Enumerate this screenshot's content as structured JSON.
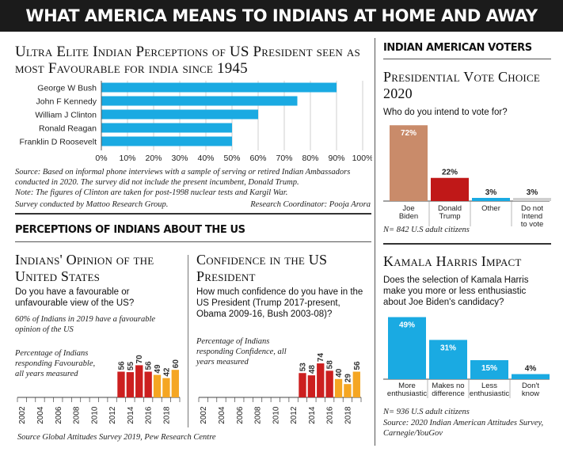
{
  "header": {
    "title": "WHAT AMERICA MEANS TO INDIANS AT HOME AND AWAY"
  },
  "colors": {
    "blue": "#1aaae2",
    "red": "#cc1f1f",
    "orange": "#f5a623",
    "tan": "#c98b6a",
    "darkred": "#c01818",
    "grey": "#d0d0d0",
    "banner": "#1b1b1b"
  },
  "elite": {
    "title": "Ultra Elite Indian Perceptions of US President seen as most Favourable for india since 1945",
    "source_note": "Source: Based on informal phone interviews with a sample of serving or retired Indian Ambassadors conducted in 2020. The survey did not include the present incumbent, Donald Trump.",
    "note": "Note: The figures of Clinton are taken for post-1998 nuclear tests and Kargil War.",
    "conducted": "Survey conducted by Mattoo Research Group.",
    "coordinator": "Research Coordinator: Pooja Arora"
  },
  "perceptions": {
    "heading": "PERCEPTIONS OF INDIANS ABOUT THE US"
  },
  "opinion": {
    "title": "Indians' Opinion of the United States",
    "question": "Do you have a favourable or unfavourable view of the US?",
    "stat": "60% of Indians in 2019 have a favourable opinion of the US",
    "legend": "Percentage of Indians responding Favourable, all years measured"
  },
  "confidence": {
    "title": "Confidence in the US President",
    "question": "How much confidence do you have in the US President (Trump 2017-present, Obama 2009-16, Bush 2003-08)?",
    "legend": "Percentage of Indians responding Confidence, all years measured"
  },
  "pew_source": "Source  Global Attitudes Survey 2019, Pew Research Centre",
  "voters": {
    "heading": "INDIAN AMERICAN VOTERS",
    "title": "Presidential Vote Choice 2020",
    "question": "Who do you intend to vote for?",
    "n": "N= 842 U.S adult citizens"
  },
  "harris": {
    "title": "Kamala Harris Impact",
    "question": "Does the selection of Kamala Harris make you more or less enthusiastic about Joe Biden's candidacy?",
    "n": "N= 936 U.S adult citizens",
    "source": "Source: 2020 Indian American Attitudes Survey, Carnegie/YouGov"
  },
  "chart_data": [
    {
      "id": "elite",
      "type": "bar",
      "orientation": "horizontal",
      "categories": [
        "George W Bush",
        "John F Kennedy",
        "William J Clinton",
        "Ronald Reagan",
        "Franklin D Roosevelt"
      ],
      "values": [
        90,
        75,
        60,
        50,
        50
      ],
      "xlim": [
        0,
        100
      ],
      "xticks": [
        "0%",
        "10%",
        "20%",
        "30%",
        "40%",
        "50%",
        "60%",
        "70%",
        "80%",
        "90%",
        "100%"
      ],
      "grid": true
    },
    {
      "id": "opinion",
      "type": "bar",
      "x": [
        2012,
        2013,
        2014,
        2015,
        2016,
        2017,
        2018,
        2019
      ],
      "values": [
        null,
        56,
        55,
        70,
        56,
        49,
        42,
        60
      ],
      "xticks": [
        "2002",
        "2004",
        "2006",
        "2008",
        "2010",
        "2012",
        "2014",
        "2016",
        "2018"
      ],
      "xlim": [
        2002,
        2020
      ]
    },
    {
      "id": "confidence",
      "type": "bar",
      "x": [
        2012,
        2013,
        2014,
        2015,
        2016,
        2017,
        2018,
        2019
      ],
      "values": [
        null,
        53,
        48,
        74,
        58,
        40,
        29,
        56
      ],
      "xticks": [
        "2002",
        "2004",
        "2006",
        "2008",
        "2010",
        "2012",
        "2014",
        "2016",
        "2018"
      ],
      "xlim": [
        2002,
        2020
      ]
    },
    {
      "id": "vote",
      "type": "bar",
      "categories": [
        "Joe Biden",
        "Donald Trump",
        "Other",
        "Do not Intend to vote"
      ],
      "values": [
        72,
        22,
        3,
        3
      ],
      "labels": [
        "72%",
        "22%",
        "3%",
        "3%"
      ]
    },
    {
      "id": "harris",
      "type": "bar",
      "categories": [
        "More enthusiastic",
        "Makes no difference",
        "Less enthusiastic",
        "Don't know"
      ],
      "values": [
        49,
        31,
        15,
        4
      ],
      "labels": [
        "49%",
        "31%",
        "15%",
        "4%"
      ]
    }
  ]
}
